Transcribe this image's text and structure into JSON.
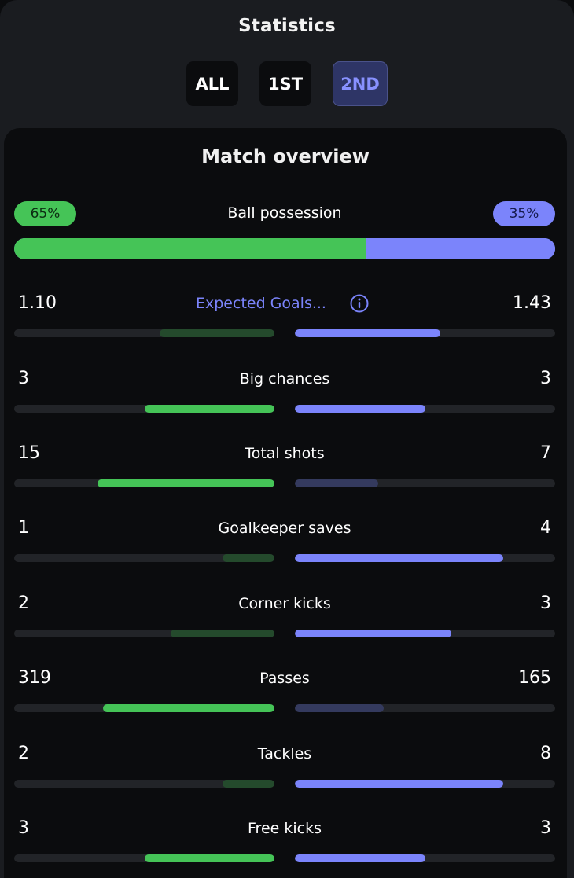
{
  "header": {
    "title": "Statistics",
    "tabs": [
      {
        "label": "ALL",
        "active": false
      },
      {
        "label": "1ST",
        "active": false
      },
      {
        "label": "2ND",
        "active": true
      }
    ]
  },
  "overview": {
    "title": "Match overview",
    "possession": {
      "label": "Ball possession",
      "home": "65%",
      "away": "35%",
      "home_fraction": 0.65
    },
    "stats": [
      {
        "label": "Expected Goals...",
        "home": "1.10",
        "away": "1.43",
        "home_fill": 0.44,
        "away_fill": 0.56,
        "home_winner": false,
        "away_winner": true,
        "has_info": true
      },
      {
        "label": "Big chances",
        "home": "3",
        "away": "3",
        "home_fill": 0.5,
        "away_fill": 0.5,
        "home_winner": true,
        "away_winner": true,
        "has_info": false
      },
      {
        "label": "Total shots",
        "home": "15",
        "away": "7",
        "home_fill": 0.68,
        "away_fill": 0.32,
        "home_winner": true,
        "away_winner": false,
        "has_info": false
      },
      {
        "label": "Goalkeeper saves",
        "home": "1",
        "away": "4",
        "home_fill": 0.2,
        "away_fill": 0.8,
        "home_winner": false,
        "away_winner": true,
        "has_info": false
      },
      {
        "label": "Corner kicks",
        "home": "2",
        "away": "3",
        "home_fill": 0.4,
        "away_fill": 0.6,
        "home_winner": false,
        "away_winner": true,
        "has_info": false
      },
      {
        "label": "Passes",
        "home": "319",
        "away": "165",
        "home_fill": 0.66,
        "away_fill": 0.34,
        "home_winner": true,
        "away_winner": false,
        "has_info": false
      },
      {
        "label": "Tackles",
        "home": "2",
        "away": "8",
        "home_fill": 0.2,
        "away_fill": 0.8,
        "home_winner": false,
        "away_winner": true,
        "has_info": false
      },
      {
        "label": "Free kicks",
        "home": "3",
        "away": "3",
        "home_fill": 0.5,
        "away_fill": 0.5,
        "home_winner": true,
        "away_winner": true,
        "has_info": false
      }
    ]
  },
  "colors": {
    "home": "#45c457",
    "home_dim": "#244a2c",
    "away": "#7b84fb",
    "away_dim": "#343a5e"
  },
  "icons": {
    "info": "info-circle-icon"
  }
}
